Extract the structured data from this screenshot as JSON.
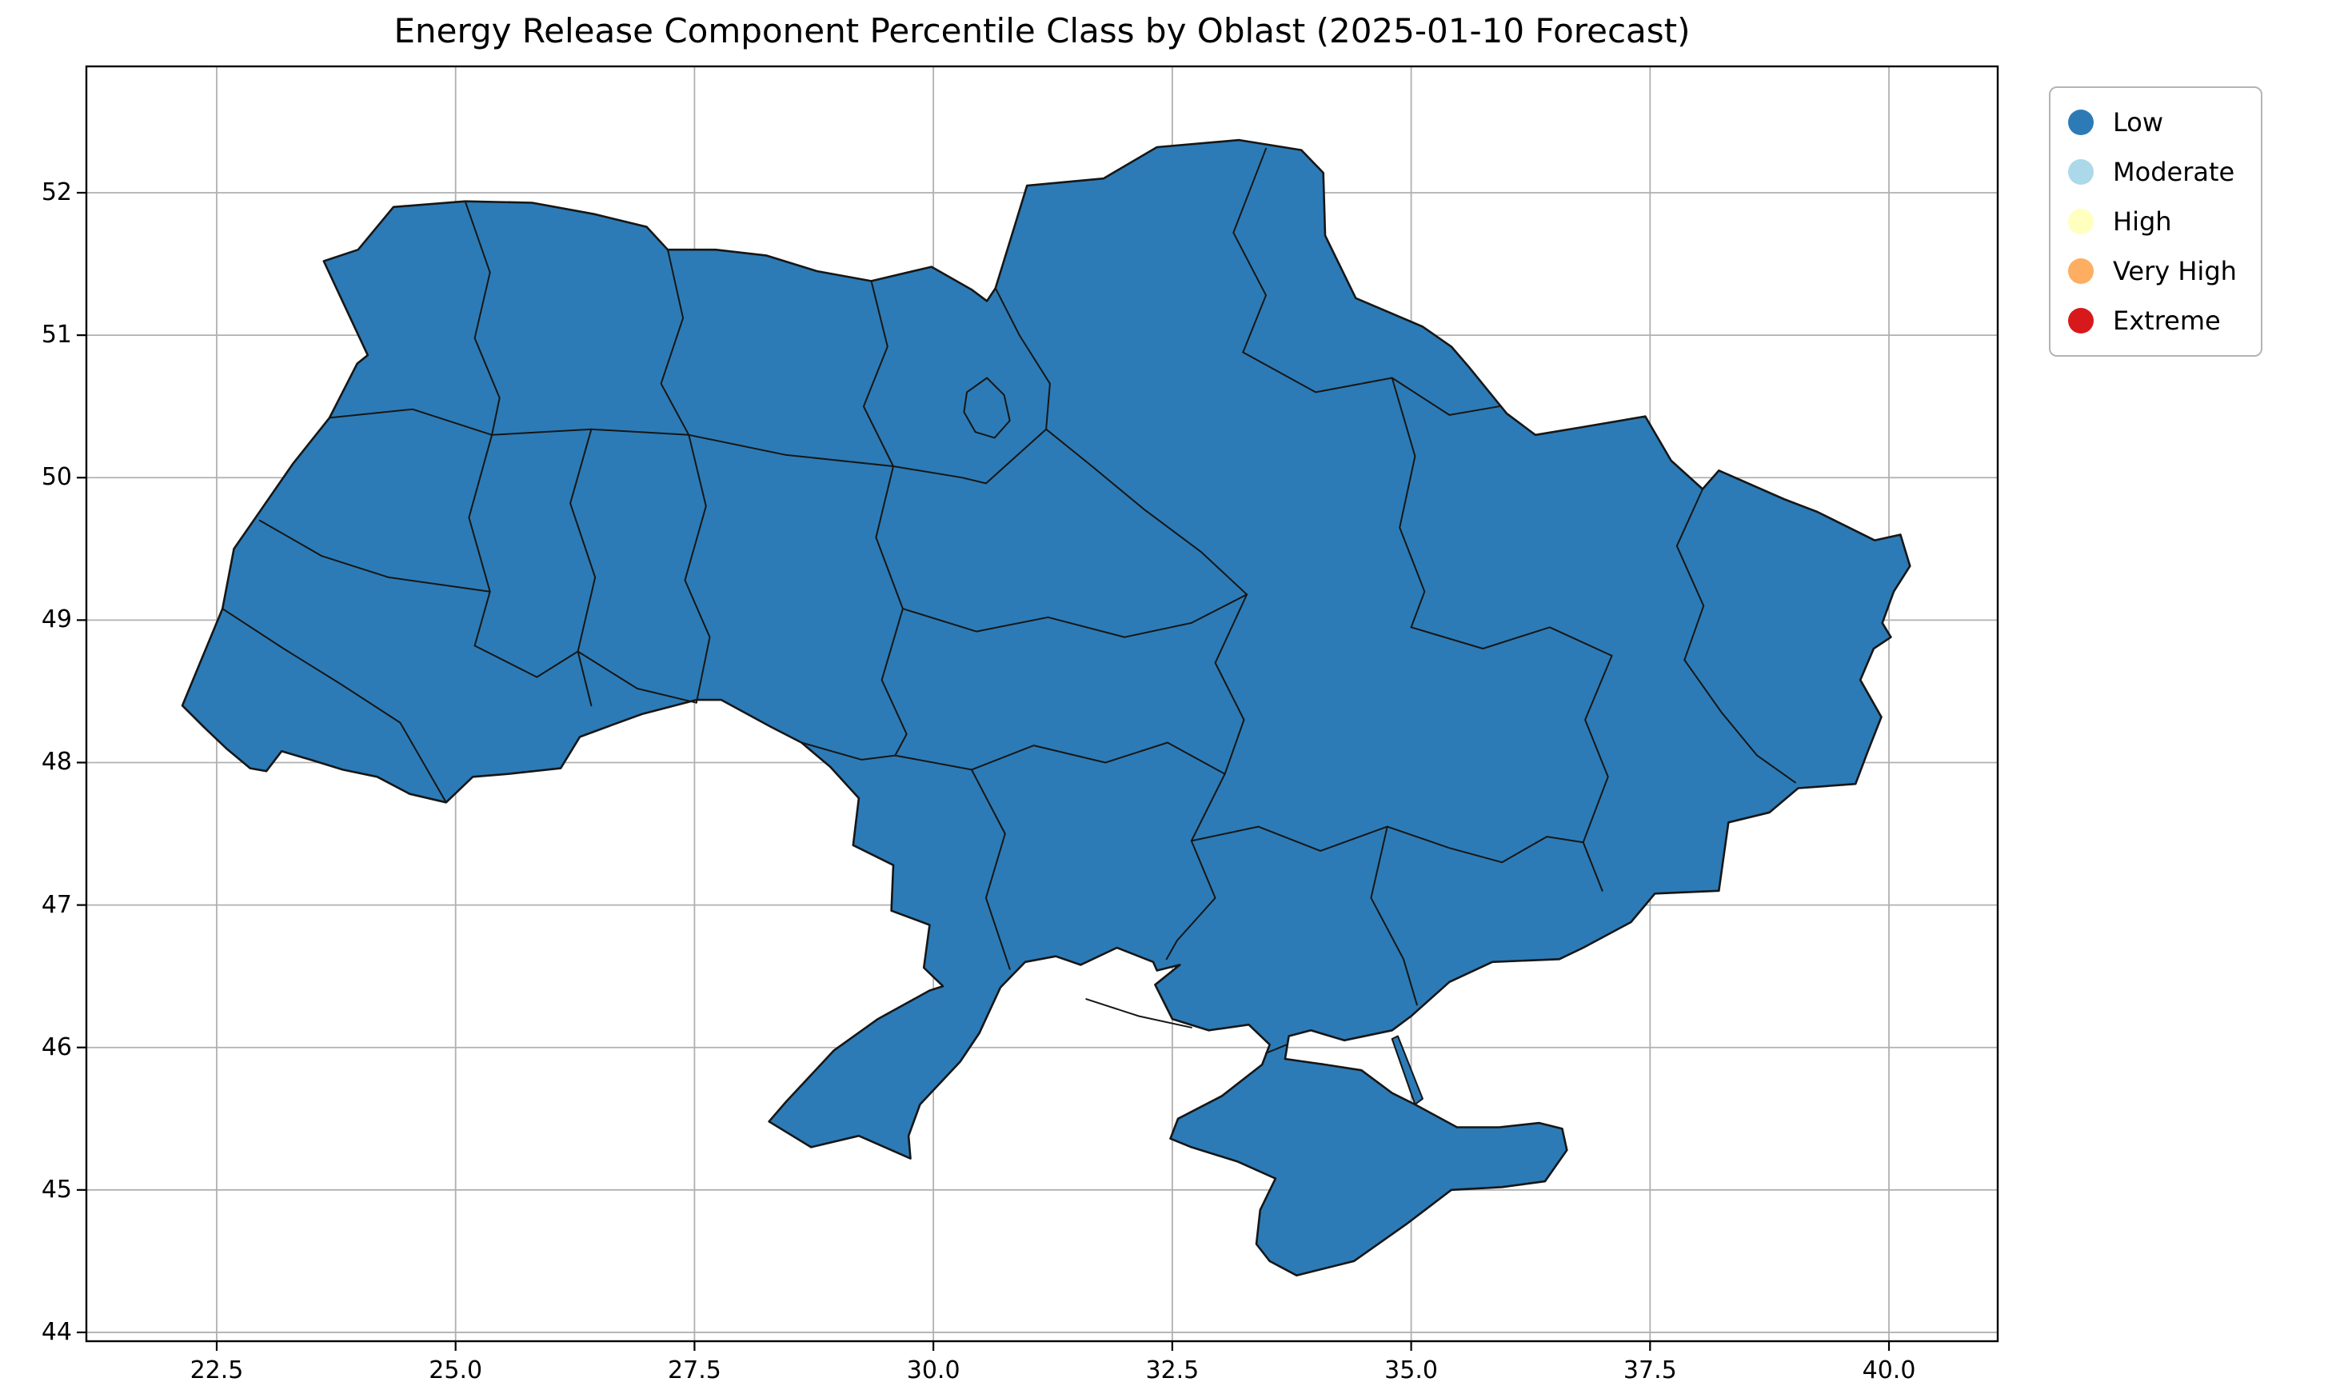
{
  "chart_data": {
    "type": "choropleth",
    "title": "Energy Release Component Percentile Class by Oblast (2025-01-10 Forecast)",
    "region_set": "Ukraine oblasts",
    "forecast_date": "2025-01-10",
    "all_regions_class": "Low",
    "grid": true,
    "grid_color": "#b0b0b0",
    "x_axis": {
      "label": "",
      "ticks": [
        22.5,
        25.0,
        27.5,
        30.0,
        32.5,
        35.0,
        37.5,
        40.0
      ],
      "tick_labels": [
        "22.5",
        "25.0",
        "27.5",
        "30.0",
        "32.5",
        "35.0",
        "37.5",
        "40.0"
      ],
      "range": [
        21.136,
        41.138
      ]
    },
    "y_axis": {
      "label": "",
      "ticks": [
        44,
        45,
        46,
        47,
        48,
        49,
        50,
        51,
        52
      ],
      "tick_labels": [
        "44",
        "45",
        "46",
        "47",
        "48",
        "49",
        "50",
        "51",
        "52"
      ],
      "range": [
        43.938,
        52.887
      ]
    },
    "legend": {
      "position": "upper right outside axes",
      "entries": [
        {
          "label": "Low",
          "color": "#2c7bb6"
        },
        {
          "label": "Moderate",
          "color": "#abd9e9"
        },
        {
          "label": "High",
          "color": "#ffffbf"
        },
        {
          "label": "Very High",
          "color": "#fdae61"
        },
        {
          "label": "Extreme",
          "color": "#d7191c"
        }
      ]
    },
    "map": {
      "fill_class": "Low",
      "fill_color": "#2c7bb6",
      "border_color": "#161616",
      "outline": [
        [
          22.14,
          48.4
        ],
        [
          22.56,
          49.08
        ],
        [
          22.68,
          49.5
        ],
        [
          23.3,
          50.1
        ],
        [
          23.68,
          50.42
        ],
        [
          23.97,
          50.8
        ],
        [
          24.08,
          50.86
        ],
        [
          23.62,
          51.52
        ],
        [
          23.98,
          51.6
        ],
        [
          24.35,
          51.9
        ],
        [
          25.1,
          51.94
        ],
        [
          25.8,
          51.93
        ],
        [
          26.45,
          51.85
        ],
        [
          27.0,
          51.76
        ],
        [
          27.22,
          51.6
        ],
        [
          27.72,
          51.6
        ],
        [
          28.25,
          51.56
        ],
        [
          28.78,
          51.45
        ],
        [
          29.35,
          51.38
        ],
        [
          29.98,
          51.48
        ],
        [
          30.4,
          51.32
        ],
        [
          30.56,
          51.24
        ],
        [
          30.65,
          51.33
        ],
        [
          30.82,
          51.7
        ],
        [
          30.98,
          52.05
        ],
        [
          31.78,
          52.1
        ],
        [
          32.34,
          52.32
        ],
        [
          33.2,
          52.37
        ],
        [
          33.85,
          52.3
        ],
        [
          34.08,
          52.14
        ],
        [
          34.1,
          51.7
        ],
        [
          34.42,
          51.26
        ],
        [
          35.12,
          51.06
        ],
        [
          35.42,
          50.92
        ],
        [
          35.6,
          50.78
        ],
        [
          36.0,
          50.45
        ],
        [
          36.3,
          50.3
        ],
        [
          36.75,
          50.35
        ],
        [
          37.45,
          50.43
        ],
        [
          37.72,
          50.12
        ],
        [
          38.05,
          49.92
        ],
        [
          38.22,
          50.05
        ],
        [
          38.9,
          49.85
        ],
        [
          39.25,
          49.76
        ],
        [
          39.85,
          49.56
        ],
        [
          40.12,
          49.6
        ],
        [
          40.22,
          49.38
        ],
        [
          40.05,
          49.2
        ],
        [
          39.93,
          48.98
        ],
        [
          40.02,
          48.88
        ],
        [
          39.84,
          48.8
        ],
        [
          39.7,
          48.58
        ],
        [
          39.92,
          48.32
        ],
        [
          39.78,
          48.08
        ],
        [
          39.65,
          47.85
        ],
        [
          39.05,
          47.82
        ],
        [
          38.75,
          47.65
        ],
        [
          38.32,
          47.58
        ],
        [
          38.22,
          47.1
        ],
        [
          37.55,
          47.08
        ],
        [
          37.3,
          46.88
        ],
        [
          36.8,
          46.7
        ],
        [
          36.55,
          46.62
        ],
        [
          35.85,
          46.6
        ],
        [
          35.4,
          46.46
        ],
        [
          35.0,
          46.22
        ],
        [
          34.8,
          46.12
        ],
        [
          34.3,
          46.05
        ],
        [
          33.95,
          46.12
        ],
        [
          33.72,
          46.08
        ],
        [
          33.68,
          45.92
        ],
        [
          34.1,
          45.88
        ],
        [
          34.48,
          45.84
        ],
        [
          34.8,
          45.68
        ],
        [
          35.04,
          45.6
        ],
        [
          35.48,
          45.44
        ],
        [
          35.92,
          45.44
        ],
        [
          36.34,
          45.47
        ],
        [
          36.58,
          45.43
        ],
        [
          36.63,
          45.28
        ],
        [
          36.4,
          45.06
        ],
        [
          35.95,
          45.02
        ],
        [
          35.42,
          45.0
        ],
        [
          34.95,
          44.76
        ],
        [
          34.4,
          44.5
        ],
        [
          33.8,
          44.4
        ],
        [
          33.52,
          44.5
        ],
        [
          33.38,
          44.62
        ],
        [
          33.42,
          44.86
        ],
        [
          33.58,
          45.08
        ],
        [
          33.18,
          45.2
        ],
        [
          32.7,
          45.3
        ],
        [
          32.48,
          45.36
        ],
        [
          32.56,
          45.5
        ],
        [
          33.02,
          45.66
        ],
        [
          33.44,
          45.88
        ],
        [
          33.52,
          46.02
        ],
        [
          33.3,
          46.16
        ],
        [
          32.88,
          46.12
        ],
        [
          32.5,
          46.2
        ],
        [
          32.32,
          46.44
        ],
        [
          32.58,
          46.58
        ],
        [
          32.34,
          46.54
        ],
        [
          32.3,
          46.6
        ],
        [
          31.92,
          46.7
        ],
        [
          31.54,
          46.58
        ],
        [
          31.28,
          46.64
        ],
        [
          30.96,
          46.6
        ],
        [
          30.7,
          46.42
        ],
        [
          30.48,
          46.1
        ],
        [
          30.28,
          45.9
        ],
        [
          29.86,
          45.6
        ],
        [
          29.74,
          45.38
        ],
        [
          29.76,
          45.22
        ],
        [
          29.22,
          45.38
        ],
        [
          28.72,
          45.3
        ],
        [
          28.28,
          45.48
        ],
        [
          28.46,
          45.62
        ],
        [
          28.96,
          45.98
        ],
        [
          29.42,
          46.2
        ],
        [
          29.96,
          46.4
        ],
        [
          30.1,
          46.43
        ],
        [
          29.9,
          46.56
        ],
        [
          29.96,
          46.86
        ],
        [
          29.56,
          46.96
        ],
        [
          29.58,
          47.28
        ],
        [
          29.16,
          47.42
        ],
        [
          29.22,
          47.75
        ],
        [
          28.92,
          47.97
        ],
        [
          28.62,
          48.14
        ],
        [
          28.3,
          48.25
        ],
        [
          27.78,
          48.44
        ],
        [
          27.52,
          48.44
        ],
        [
          26.95,
          48.34
        ],
        [
          26.62,
          48.26
        ],
        [
          26.3,
          48.18
        ],
        [
          26.1,
          47.96
        ],
        [
          25.55,
          47.92
        ],
        [
          25.18,
          47.9
        ],
        [
          24.9,
          47.72
        ],
        [
          24.52,
          47.78
        ],
        [
          24.18,
          47.9
        ],
        [
          23.82,
          47.95
        ],
        [
          23.48,
          48.02
        ],
        [
          23.18,
          48.08
        ],
        [
          23.02,
          47.94
        ],
        [
          22.85,
          47.96
        ],
        [
          22.6,
          48.1
        ],
        [
          22.38,
          48.24
        ]
      ],
      "closed_shapes": [
        [
          [
            30.35,
            50.6
          ],
          [
            30.56,
            50.7
          ],
          [
            30.74,
            50.58
          ],
          [
            30.8,
            50.4
          ],
          [
            30.64,
            50.28
          ],
          [
            30.44,
            50.32
          ],
          [
            30.32,
            50.46
          ]
        ],
        [
          [
            35.04,
            45.6
          ],
          [
            34.8,
            46.06
          ],
          [
            34.86,
            46.08
          ],
          [
            35.12,
            45.64
          ]
        ]
      ],
      "internal_borders": [
        [
          [
            25.1,
            51.94
          ],
          [
            25.36,
            51.44
          ],
          [
            25.2,
            50.98
          ],
          [
            25.46,
            50.56
          ],
          [
            25.38,
            50.3
          ]
        ],
        [
          [
            27.22,
            51.6
          ],
          [
            27.38,
            51.12
          ],
          [
            27.15,
            50.66
          ],
          [
            27.44,
            50.3
          ]
        ],
        [
          [
            29.35,
            51.38
          ],
          [
            29.52,
            50.92
          ],
          [
            29.27,
            50.5
          ],
          [
            29.58,
            50.08
          ]
        ],
        [
          [
            30.65,
            51.33
          ],
          [
            30.9,
            51.0
          ],
          [
            31.22,
            50.66
          ],
          [
            31.18,
            50.34
          ]
        ],
        [
          [
            33.48,
            52.31
          ],
          [
            33.14,
            51.72
          ],
          [
            33.48,
            51.28
          ],
          [
            33.24,
            50.88
          ]
        ],
        [
          [
            23.68,
            50.42
          ],
          [
            24.55,
            50.48
          ],
          [
            25.38,
            50.3
          ],
          [
            26.42,
            50.34
          ],
          [
            27.44,
            50.3
          ],
          [
            28.45,
            50.16
          ],
          [
            29.58,
            50.08
          ],
          [
            30.3,
            50.0
          ],
          [
            30.55,
            49.96
          ],
          [
            31.18,
            50.34
          ]
        ],
        [
          [
            33.24,
            50.88
          ],
          [
            34.0,
            50.6
          ],
          [
            34.8,
            50.7
          ],
          [
            35.4,
            50.44
          ],
          [
            35.92,
            50.5
          ]
        ],
        [
          [
            25.38,
            50.3
          ],
          [
            25.14,
            49.72
          ],
          [
            25.36,
            49.2
          ],
          [
            25.2,
            48.82
          ]
        ],
        [
          [
            26.42,
            50.34
          ],
          [
            26.2,
            49.82
          ],
          [
            26.46,
            49.3
          ],
          [
            26.28,
            48.78
          ],
          [
            26.42,
            48.4
          ]
        ],
        [
          [
            27.44,
            50.3
          ],
          [
            27.62,
            49.8
          ],
          [
            27.4,
            49.28
          ],
          [
            27.66,
            48.88
          ],
          [
            27.52,
            48.42
          ]
        ],
        [
          [
            29.58,
            50.08
          ],
          [
            29.4,
            49.58
          ],
          [
            29.68,
            49.08
          ],
          [
            29.46,
            48.58
          ],
          [
            29.72,
            48.2
          ],
          [
            29.6,
            48.05
          ]
        ],
        [
          [
            31.18,
            50.34
          ],
          [
            31.66,
            50.08
          ],
          [
            32.2,
            49.78
          ],
          [
            32.8,
            49.48
          ],
          [
            33.28,
            49.18
          ]
        ],
        [
          [
            34.8,
            50.7
          ],
          [
            35.04,
            50.15
          ],
          [
            34.88,
            49.65
          ],
          [
            35.14,
            49.2
          ],
          [
            35.0,
            48.95
          ]
        ],
        [
          [
            38.05,
            49.92
          ],
          [
            37.78,
            49.52
          ],
          [
            38.06,
            49.1
          ],
          [
            37.86,
            48.72
          ]
        ],
        [
          [
            22.56,
            49.08
          ],
          [
            23.2,
            48.8
          ],
          [
            23.8,
            48.55
          ],
          [
            24.42,
            48.28
          ],
          [
            24.9,
            47.72
          ]
        ],
        [
          [
            22.95,
            49.7
          ],
          [
            23.6,
            49.45
          ],
          [
            24.3,
            49.3
          ],
          [
            25.36,
            49.2
          ]
        ],
        [
          [
            25.2,
            48.82
          ],
          [
            25.85,
            48.6
          ],
          [
            26.28,
            48.78
          ],
          [
            26.9,
            48.52
          ],
          [
            27.52,
            48.42
          ]
        ],
        [
          [
            28.62,
            48.14
          ],
          [
            29.25,
            48.02
          ],
          [
            29.6,
            48.05
          ],
          [
            30.4,
            47.95
          ],
          [
            31.05,
            48.12
          ],
          [
            31.8,
            48.0
          ],
          [
            32.45,
            48.14
          ],
          [
            33.05,
            47.92
          ]
        ],
        [
          [
            30.4,
            47.95
          ],
          [
            30.75,
            47.5
          ],
          [
            30.55,
            47.05
          ],
          [
            30.8,
            46.55
          ]
        ],
        [
          [
            33.05,
            47.92
          ],
          [
            32.7,
            47.45
          ],
          [
            32.95,
            47.05
          ],
          [
            32.55,
            46.75
          ],
          [
            32.44,
            46.62
          ]
        ],
        [
          [
            32.7,
            47.45
          ],
          [
            33.4,
            47.55
          ],
          [
            34.05,
            47.38
          ],
          [
            34.75,
            47.55
          ],
          [
            35.4,
            47.4
          ],
          [
            35.95,
            47.3
          ],
          [
            36.42,
            47.48
          ],
          [
            36.8,
            47.44
          ]
        ],
        [
          [
            34.75,
            47.55
          ],
          [
            34.58,
            47.05
          ],
          [
            34.92,
            46.62
          ],
          [
            35.06,
            46.3
          ]
        ],
        [
          [
            35.0,
            48.95
          ],
          [
            35.75,
            48.8
          ],
          [
            36.45,
            48.95
          ],
          [
            37.1,
            48.75
          ]
        ],
        [
          [
            37.1,
            48.75
          ],
          [
            36.82,
            48.3
          ],
          [
            37.06,
            47.9
          ],
          [
            36.8,
            47.44
          ],
          [
            37.0,
            47.1
          ]
        ],
        [
          [
            37.86,
            48.72
          ],
          [
            38.25,
            48.35
          ],
          [
            38.62,
            48.05
          ],
          [
            39.02,
            47.86
          ]
        ],
        [
          [
            29.68,
            49.08
          ],
          [
            30.45,
            48.92
          ],
          [
            31.2,
            49.02
          ],
          [
            32.0,
            48.88
          ],
          [
            32.7,
            48.98
          ],
          [
            33.28,
            49.18
          ]
        ],
        [
          [
            33.28,
            49.18
          ],
          [
            32.95,
            48.7
          ],
          [
            33.25,
            48.3
          ],
          [
            33.05,
            47.92
          ]
        ],
        [
          [
            33.48,
            45.96
          ],
          [
            33.7,
            46.02
          ]
        ],
        [
          [
            31.6,
            46.34
          ],
          [
            32.15,
            46.22
          ],
          [
            32.7,
            46.14
          ]
        ]
      ]
    }
  }
}
